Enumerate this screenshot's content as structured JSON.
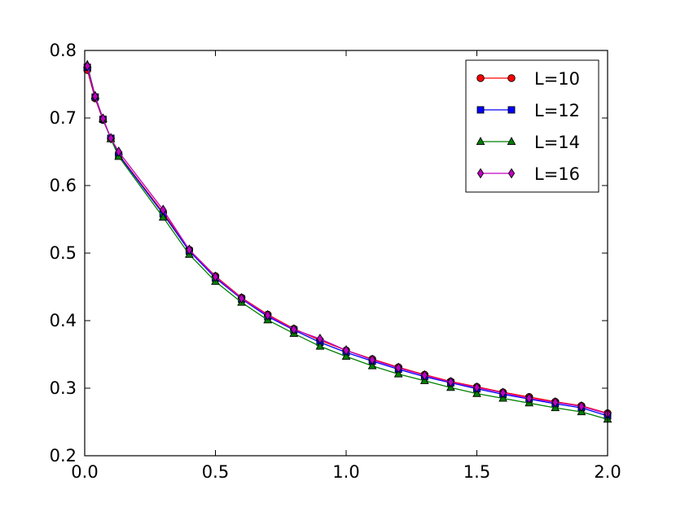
{
  "chart_data": {
    "type": "line",
    "title": "",
    "xlabel": "",
    "ylabel": "",
    "xlim": [
      0.0,
      2.0
    ],
    "ylim": [
      0.2,
      0.8
    ],
    "grid": false,
    "legend_position": "top-right",
    "x_ticks": [
      {
        "value": 0.0,
        "label": "0.0"
      },
      {
        "value": 0.5,
        "label": "0.5"
      },
      {
        "value": 1.0,
        "label": "1.0"
      },
      {
        "value": 1.5,
        "label": "1.5"
      },
      {
        "value": 2.0,
        "label": "2.0"
      }
    ],
    "y_ticks": [
      {
        "value": 0.2,
        "label": "0.2"
      },
      {
        "value": 0.3,
        "label": "0.3"
      },
      {
        "value": 0.4,
        "label": "0.4"
      },
      {
        "value": 0.5,
        "label": "0.5"
      },
      {
        "value": 0.6,
        "label": "0.6"
      },
      {
        "value": 0.7,
        "label": "0.7"
      },
      {
        "value": 0.8,
        "label": "0.8"
      }
    ],
    "x": [
      0.01,
      0.04,
      0.07,
      0.1,
      0.13,
      0.3,
      0.4,
      0.5,
      0.6,
      0.7,
      0.8,
      0.9,
      1.0,
      1.1,
      1.2,
      1.3,
      1.4,
      1.5,
      1.6,
      1.7,
      1.8,
      1.9,
      2.0
    ],
    "series": [
      {
        "name": "L=10",
        "color": "#ff0000",
        "marker": "circle",
        "values": [
          0.771,
          0.729,
          0.697,
          0.67,
          0.646,
          0.56,
          0.505,
          0.466,
          0.434,
          0.409,
          0.388,
          0.371,
          0.356,
          0.343,
          0.331,
          0.32,
          0.31,
          0.302,
          0.294,
          0.287,
          0.28,
          0.274,
          0.263
        ]
      },
      {
        "name": "L=12",
        "color": "#0000ff",
        "marker": "square",
        "values": [
          0.775,
          0.731,
          0.698,
          0.67,
          0.645,
          0.558,
          0.503,
          0.463,
          0.432,
          0.406,
          0.386,
          0.368,
          0.353,
          0.34,
          0.328,
          0.317,
          0.308,
          0.299,
          0.291,
          0.284,
          0.277,
          0.271,
          0.259
        ]
      },
      {
        "name": "L=14",
        "color": "#008000",
        "marker": "triangle",
        "values": [
          0.779,
          0.733,
          0.699,
          0.669,
          0.643,
          0.553,
          0.498,
          0.458,
          0.427,
          0.401,
          0.381,
          0.362,
          0.347,
          0.333,
          0.321,
          0.311,
          0.301,
          0.292,
          0.285,
          0.278,
          0.271,
          0.265,
          0.254
        ]
      },
      {
        "name": "L=16",
        "color": "#bf00bf",
        "marker": "diamond",
        "values": [
          0.777,
          0.732,
          0.699,
          0.67,
          0.65,
          0.564,
          0.505,
          0.465,
          0.433,
          0.408,
          0.387,
          0.373,
          0.356,
          0.342,
          0.33,
          0.319,
          0.309,
          0.301,
          0.293,
          0.285,
          0.279,
          0.273,
          0.262
        ]
      }
    ]
  }
}
